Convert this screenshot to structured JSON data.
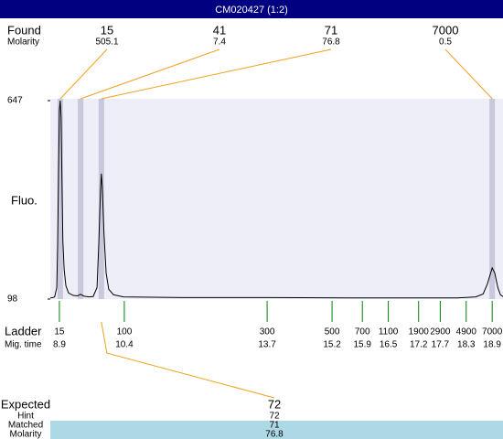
{
  "title": "CM020427 (1:2)",
  "chart_data": {
    "type": "line",
    "ylabel": "Fluo.",
    "color": "#000000",
    "ylim": [
      98,
      647
    ],
    "yticks": [
      98,
      647
    ],
    "xlim": [
      8.69,
      19.15
    ],
    "x": [
      8.69,
      8.75,
      8.79,
      8.84,
      8.86,
      8.88,
      8.9,
      8.92,
      8.94,
      8.96,
      8.98,
      9.01,
      9.05,
      9.11,
      9.22,
      9.32,
      9.39,
      9.47,
      9.58,
      9.68,
      9.77,
      9.81,
      9.85,
      9.87,
      9.89,
      9.93,
      9.98,
      10.04,
      10.15,
      10.38,
      11.75,
      13.87,
      15.98,
      18.1,
      18.52,
      18.69,
      18.79,
      18.9,
      18.96,
      19.03,
      19.09,
      19.15
    ],
    "values": [
      101,
      102,
      104,
      130,
      250,
      450,
      620,
      647,
      600,
      420,
      260,
      180,
      135,
      115,
      108,
      107,
      111,
      106,
      104,
      105,
      130,
      250,
      400,
      445,
      410,
      280,
      170,
      125,
      110,
      104,
      102,
      102,
      101,
      101,
      104,
      112,
      140,
      184,
      170,
      130,
      110,
      105
    ]
  },
  "found": {
    "label": "Found",
    "molarity_label": "Molarity",
    "peaks": [
      {
        "size": 15,
        "molarity": 505.1,
        "x": 8.92
      },
      {
        "size": 41,
        "molarity": 7.4,
        "x": 9.39
      },
      {
        "size": 71,
        "molarity": 76.8,
        "x": 9.87
      },
      {
        "size": 7000,
        "molarity": 0.5,
        "x": 18.9
      }
    ]
  },
  "ladder": {
    "label": "Ladder",
    "time_label": "Mig. time",
    "sizes": [
      15,
      100,
      300,
      500,
      700,
      1100,
      1900,
      2900,
      4900,
      7000
    ],
    "times": [
      8.9,
      10.4,
      13.7,
      15.2,
      15.9,
      16.5,
      17.2,
      17.7,
      18.3,
      18.9
    ]
  },
  "expected": {
    "label": "Expected",
    "value": 72,
    "hint_label": "Hint",
    "hint": 72,
    "matched_label": "Matched",
    "matched": 71,
    "molarity_label": "Molarity",
    "molarity": 76.8
  }
}
